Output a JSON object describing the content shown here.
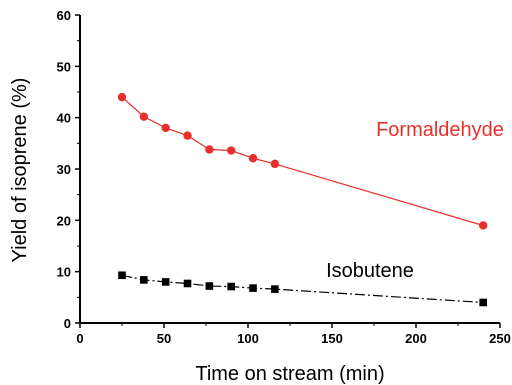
{
  "chart_data": {
    "type": "line",
    "xlabel": "Time on stream (min)",
    "ylabel": "Yield of isoprene (%)",
    "xlim": [
      0,
      250
    ],
    "ylim": [
      0,
      60
    ],
    "x_ticks": [
      0,
      50,
      100,
      150,
      200,
      250
    ],
    "y_ticks": [
      0,
      10,
      20,
      30,
      40,
      50,
      60
    ],
    "grid": false,
    "legend": "none",
    "series": [
      {
        "name": "Formaldehyde",
        "color": "#e8302a",
        "marker": "circle",
        "line_style": "solid",
        "points": [
          [
            25,
            44
          ],
          [
            38,
            40.2
          ],
          [
            51,
            38
          ],
          [
            64,
            36.5
          ],
          [
            77,
            33.8
          ],
          [
            90,
            33.6
          ],
          [
            103,
            32.1
          ],
          [
            116,
            31
          ],
          [
            240,
            19
          ]
        ]
      },
      {
        "name": "Isobutene",
        "color": "#000000",
        "marker": "square",
        "line_style": "dash",
        "points": [
          [
            25,
            9.3
          ],
          [
            38,
            8.4
          ],
          [
            51,
            8.0
          ],
          [
            64,
            7.7
          ],
          [
            77,
            7.2
          ],
          [
            90,
            7.1
          ],
          [
            103,
            6.8
          ],
          [
            116,
            6.6
          ],
          [
            240,
            4.0
          ]
        ]
      }
    ]
  }
}
